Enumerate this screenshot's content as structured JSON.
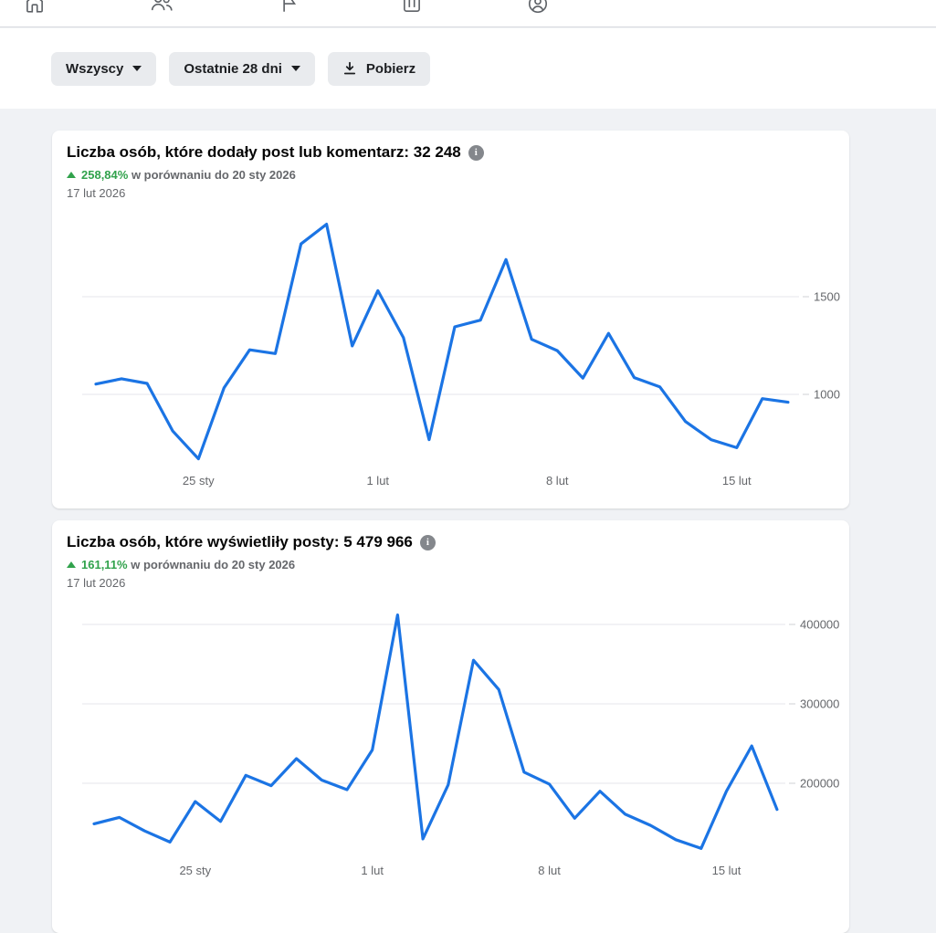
{
  "topnav": {
    "icons": [
      {
        "name": "home"
      },
      {
        "name": "people"
      },
      {
        "name": "flag"
      },
      {
        "name": "kiosk"
      },
      {
        "name": "profile"
      }
    ]
  },
  "toolbar": {
    "audience_filter_label": "Wszyscy",
    "date_range_filter_label": "Ostatnie 28 dni",
    "download_label": "Pobierz"
  },
  "icons": {
    "info_glyph": "i"
  },
  "colors": {
    "accent_blue": "#1b74e4",
    "positive_green": "#31a24c",
    "secondary_text": "#65676b",
    "page_background": "#f0f2f5"
  },
  "cards": [
    {
      "title": "Liczba osób, które dodały post lub komentarz:",
      "total": "32 248",
      "change_percent": "258,84%",
      "change_text": "w porównaniu do 20 sty 2026",
      "current_date_label": "17 lut 2026",
      "chart_data": {
        "type": "line",
        "title": "Liczba osób, które dodały post lub komentarz",
        "x": [
          "21 sty",
          "22 sty",
          "23 sty",
          "24 sty",
          "25 sty",
          "26 sty",
          "27 sty",
          "28 sty",
          "29 sty",
          "30 sty",
          "31 sty",
          "1 lut",
          "2 lut",
          "3 lut",
          "4 lut",
          "5 lut",
          "6 lut",
          "7 lut",
          "8 lut",
          "9 lut",
          "10 lut",
          "11 lut",
          "12 lut",
          "13 lut",
          "14 lut",
          "15 lut",
          "16 lut",
          "17 lut"
        ],
        "values": [
          1053,
          1080,
          1056,
          812,
          670,
          1033,
          1228,
          1209,
          1770,
          1871,
          1248,
          1531,
          1290,
          768,
          1346,
          1380,
          1690,
          1282,
          1224,
          1083,
          1312,
          1086,
          1039,
          861,
          768,
          727,
          978,
          960
        ],
        "x_ticks": [
          {
            "index": 4,
            "label": "25 sty"
          },
          {
            "index": 11,
            "label": "1 lut"
          },
          {
            "index": 18,
            "label": "8 lut"
          },
          {
            "index": 25,
            "label": "15 lut"
          }
        ],
        "y_tick_values": [
          1500,
          1000
        ],
        "ylim": [
          620,
          1950
        ],
        "grid": "horizontal",
        "legend": "none",
        "line_color": "#1b74e4"
      }
    },
    {
      "title": "Liczba osób, które wyświetliły posty:",
      "total": "5 479 966",
      "change_percent": "161,11%",
      "change_text": "w porównaniu do 20 sty 2026",
      "current_date_label": "17 lut 2026",
      "chart_data": {
        "type": "line",
        "title": "Liczba osób, które wyświetliły posty",
        "x": [
          "21 sty",
          "22 sty",
          "23 sty",
          "24 sty",
          "25 sty",
          "26 sty",
          "27 sty",
          "28 sty",
          "29 sty",
          "30 sty",
          "31 sty",
          "1 lut",
          "2 lut",
          "3 lut",
          "4 lut",
          "5 lut",
          "6 lut",
          "7 lut",
          "8 lut",
          "9 lut",
          "10 lut",
          "11 lut",
          "12 lut",
          "13 lut",
          "14 lut",
          "15 lut",
          "16 lut",
          "17 lut"
        ],
        "values": [
          149000,
          157000,
          140000,
          126000,
          177000,
          152000,
          210000,
          197000,
          231000,
          204000,
          192000,
          242000,
          412000,
          130000,
          198000,
          355000,
          318000,
          214000,
          199000,
          156000,
          190000,
          161000,
          147000,
          129000,
          118000,
          190000,
          247000,
          167000
        ],
        "x_ticks": [
          {
            "index": 4,
            "label": "25 sty"
          },
          {
            "index": 11,
            "label": "1 lut"
          },
          {
            "index": 18,
            "label": "8 lut"
          },
          {
            "index": 25,
            "label": "15 lut"
          }
        ],
        "y_tick_values": [
          400000,
          300000,
          200000
        ],
        "ylim": [
          95000,
          430000
        ],
        "grid": "horizontal",
        "legend": "none",
        "line_color": "#1b74e4"
      }
    }
  ]
}
